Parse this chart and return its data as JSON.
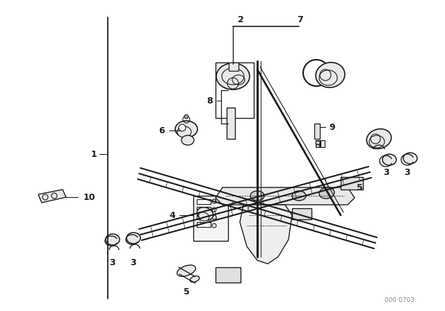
{
  "bg_color": "#ffffff",
  "line_color": "#1a1a1a",
  "fig_width": 6.4,
  "fig_height": 4.48,
  "dpi": 100,
  "watermark": "000 0703",
  "label_fs": 9,
  "small_fs": 7
}
